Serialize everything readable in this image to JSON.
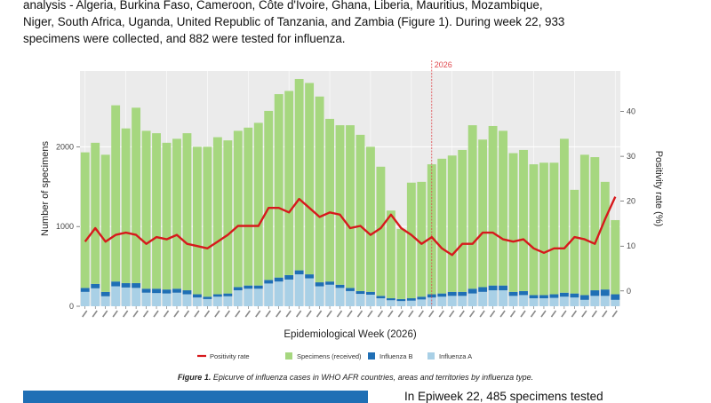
{
  "document": {
    "intro_lines": [
      "analysis - Algeria, Burkina Faso, Cameroon, Côte d'Ivoire, Ghana, Liberia, Mauritius, Mozambique,",
      "Niger, South Africa, Uganda, United Republic of Tanzania, and Zambia (Figure 1). During week 22, 933",
      "specimens were collected, and 882 were tested for influenza."
    ],
    "caption_label": "Figure 1.",
    "caption_text": " Epicurve of influenza cases in WHO AFR countries, areas and territories by influenza type.",
    "next_paragraph": "In Epiweek 22, 485 specimens tested"
  },
  "colors": {
    "specimens": "#a6d77f",
    "influenza_b": "#1f6fb5",
    "influenza_a": "#a9d0e6",
    "positivity": "#d7191c",
    "panel_bg": "#ebebeb",
    "grid": "#ffffff",
    "marker": "#e0474c",
    "accent_block": "#1f6fb5"
  },
  "chart_data": {
    "type": "bar",
    "title": "",
    "xlabel": "Epidemiological Week (2026)",
    "ylabel": "Number of specimens",
    "y2label": "Positivity rate (%)",
    "ylim": [
      0,
      2950
    ],
    "y2lim": [
      -3.4,
      49
    ],
    "yticks": [
      0,
      1000,
      2000
    ],
    "y2ticks": [
      0,
      10,
      20,
      30,
      40
    ],
    "grid": true,
    "legend_position": "bottom",
    "x_tick_labels_legible": false,
    "marker_label": "2026",
    "marker_after_index": 34,
    "stacked": true,
    "specimens_total": [
      1930,
      2050,
      1900,
      2520,
      2230,
      2490,
      2200,
      2170,
      2050,
      2100,
      2170,
      2000,
      2000,
      2120,
      2080,
      2200,
      2240,
      2300,
      2450,
      2660,
      2700,
      2850,
      2800,
      2630,
      2350,
      2270,
      2270,
      2150,
      2000,
      1750,
      1200,
      970,
      1550,
      1560,
      1780,
      1850,
      1890,
      1960,
      2270,
      2090,
      2260,
      2200,
      1920,
      1960,
      1780,
      1800,
      1800,
      2100,
      1460,
      1900,
      1870,
      1560,
      1080
    ],
    "series": [
      {
        "name": "Positivity rate",
        "axis": "right",
        "kind": "line",
        "values": [
          11,
          14,
          11,
          12.5,
          13,
          12.5,
          10.5,
          12,
          11.5,
          12.5,
          10.5,
          10,
          9.5,
          11,
          12.5,
          14.5,
          14.5,
          14.5,
          18.5,
          18.5,
          17.5,
          20.5,
          18.5,
          16.5,
          17.5,
          17,
          14,
          14.5,
          12.5,
          14,
          17,
          14,
          12.5,
          10.5,
          12,
          9.5,
          8,
          10.5,
          10.5,
          13,
          13,
          11.5,
          11,
          11.5,
          9.5,
          8.5,
          9.5,
          9.5,
          12,
          11.5,
          10.5,
          16,
          21
        ]
      },
      {
        "name": "Specimens (received)",
        "axis": "left",
        "kind": "bar",
        "values": [
          1700,
          1770,
          1720,
          2210,
          1940,
          2200,
          1980,
          1950,
          1840,
          1880,
          1970,
          1850,
          1880,
          1970,
          1920,
          1960,
          1980,
          2040,
          2120,
          2300,
          2310,
          2400,
          2400,
          2330,
          2040,
          2000,
          2040,
          1960,
          1820,
          1620,
          1100,
          880,
          1450,
          1440,
          1630,
          1690,
          1710,
          1780,
          2050,
          1850,
          2000,
          1940,
          1740,
          1770,
          1640,
          1660,
          1650,
          1930,
          1300,
          1760,
          1670,
          1350,
          930
        ]
      },
      {
        "name": "Influenza B",
        "axis": "left",
        "kind": "bar",
        "values": [
          50,
          55,
          55,
          60,
          55,
          60,
          50,
          55,
          50,
          50,
          50,
          40,
          30,
          30,
          35,
          40,
          40,
          40,
          45,
          50,
          55,
          50,
          50,
          50,
          40,
          40,
          40,
          35,
          35,
          30,
          25,
          25,
          30,
          35,
          40,
          40,
          50,
          50,
          60,
          60,
          60,
          60,
          50,
          50,
          40,
          40,
          45,
          50,
          50,
          60,
          70,
          80,
          70
        ]
      },
      {
        "name": "Influenza A",
        "axis": "left",
        "kind": "bar",
        "values": [
          180,
          225,
          125,
          250,
          235,
          230,
          170,
          165,
          160,
          170,
          150,
          110,
          90,
          120,
          125,
          200,
          220,
          220,
          285,
          310,
          335,
          400,
          350,
          250,
          270,
          230,
          190,
          155,
          145,
          100,
          75,
          65,
          70,
          85,
          110,
          120,
          130,
          130,
          160,
          180,
          200,
          200,
          130,
          140,
          100,
          100,
          105,
          120,
          110,
          80,
          130,
          130,
          80
        ]
      }
    ]
  }
}
